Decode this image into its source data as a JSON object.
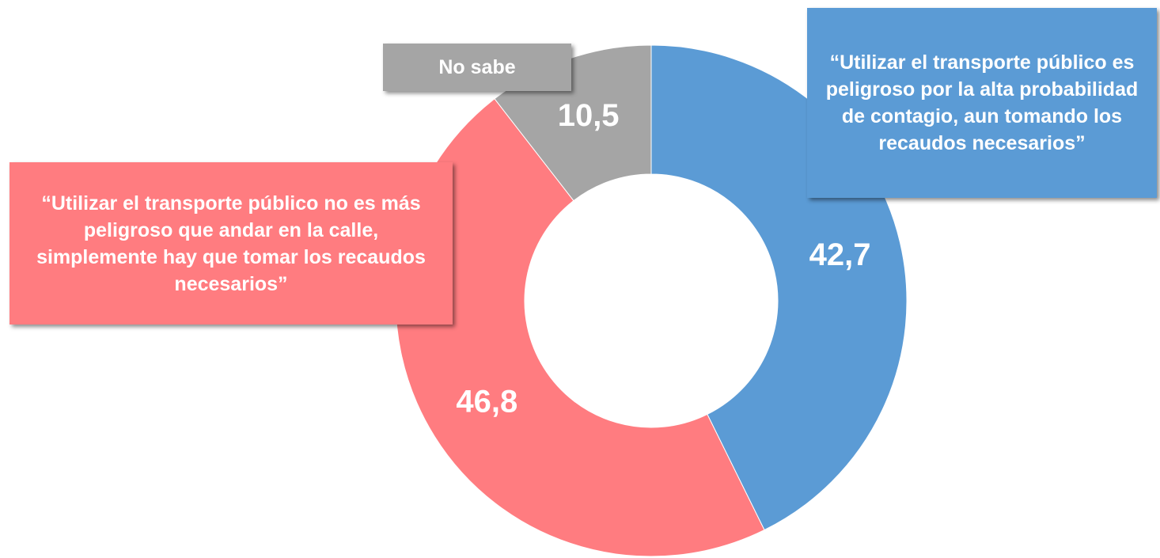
{
  "chart_data": {
    "type": "donut",
    "categories": [
      "“Utilizar el transporte público es peligroso por la alta probabilidad de contagio, aun tomando los recaudos necesarios”",
      "“Utilizar el transporte público no es más peligroso que andar en la calle, simplemente hay que tomar los recaudos necesarios”",
      "No sabe"
    ],
    "values": [
      42.7,
      46.8,
      10.5
    ],
    "value_labels": [
      "42,7",
      "46,8",
      "10,5"
    ],
    "colors": [
      "#5b9bd5",
      "#ff7c80",
      "#a5a5a5"
    ]
  }
}
